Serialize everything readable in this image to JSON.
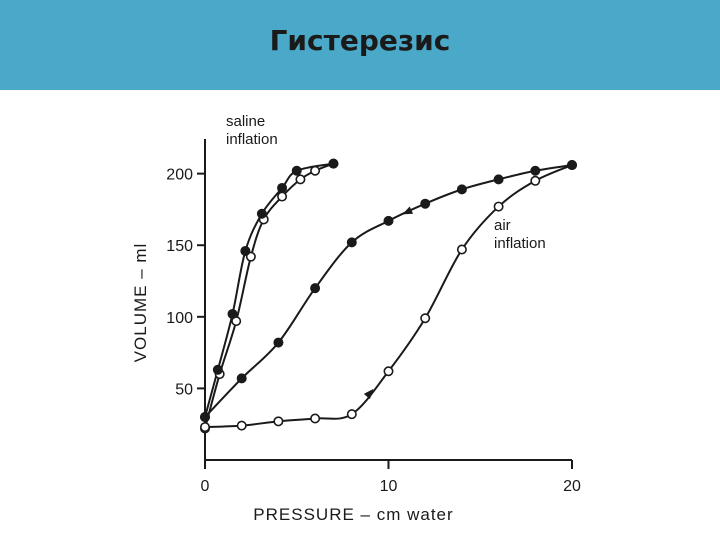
{
  "slide": {
    "title": "Гистерезис"
  },
  "chart_data": {
    "type": "line",
    "xlabel": "PRESSURE – cm water",
    "ylabel": "VOLUME – ml",
    "xlim": [
      0,
      20
    ],
    "ylim": [
      0,
      220
    ],
    "x_ticks": [
      "0",
      "10",
      "20"
    ],
    "y_ticks": [
      "50",
      "100",
      "150",
      "200"
    ],
    "grid": false,
    "annotations": [
      {
        "text": [
          "saline",
          "inflation"
        ],
        "near_series": "saline"
      },
      {
        "text": [
          "air",
          "inflation"
        ],
        "near_series": "air"
      }
    ],
    "series": [
      {
        "id": "saline-inflation",
        "marker": "open",
        "x": [
          0.0,
          0.8,
          1.7,
          2.5,
          3.2,
          4.2,
          5.2,
          6.0,
          7.0
        ],
        "y": [
          22,
          60,
          97,
          142,
          168,
          184,
          196,
          202,
          207
        ]
      },
      {
        "id": "saline-deflation",
        "marker": "filled",
        "x": [
          7.0,
          5.0,
          4.2,
          3.1,
          2.2,
          1.5,
          0.7,
          0.0
        ],
        "y": [
          207,
          202,
          190,
          172,
          146,
          102,
          63,
          30
        ]
      },
      {
        "id": "air-inflation",
        "marker": "open",
        "x": [
          0.0,
          2.0,
          4.0,
          6.0,
          8.0,
          10.0,
          12.0,
          14.0,
          16.0,
          18.0,
          20.0
        ],
        "y": [
          23,
          24,
          27,
          29,
          32,
          62,
          99,
          147,
          177,
          195,
          206
        ]
      },
      {
        "id": "air-deflation",
        "marker": "filled",
        "x": [
          20.0,
          18.0,
          16.0,
          14.0,
          12.0,
          10.0,
          8.0,
          6.0,
          4.0,
          2.0,
          0.0
        ],
        "y": [
          206,
          202,
          196,
          189,
          179,
          167,
          152,
          120,
          82,
          57,
          30
        ]
      }
    ]
  }
}
